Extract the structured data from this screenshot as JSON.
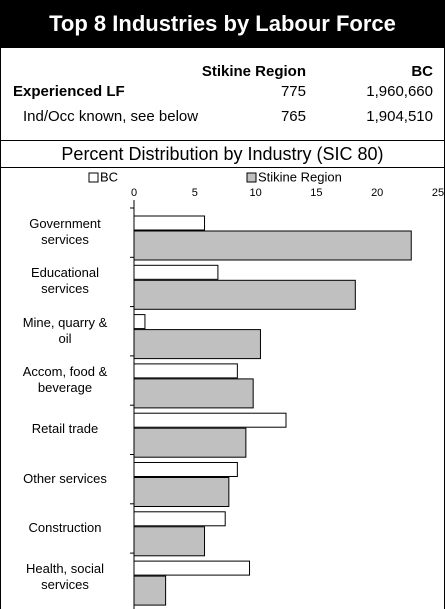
{
  "header": {
    "title": "Top 8 Industries by Labour Force"
  },
  "table": {
    "columns": [
      "Stikine Region",
      "BC"
    ],
    "rows": [
      [
        "Experienced LF",
        "775",
        "1,960,660"
      ],
      [
        "Ind/Occ known, see below",
        "765",
        "1,904,510"
      ]
    ]
  },
  "chart_data": {
    "type": "bar",
    "orientation": "horizontal",
    "title": "Percent Distribution by Industry (SIC 80)",
    "categories": [
      "Government services",
      "Educational services",
      "Mine, quarry & oil",
      "Accom, food & beverage",
      "Retail trade",
      "Other services",
      "Construction",
      "Health, social services"
    ],
    "series": [
      {
        "name": "BC",
        "color": "#ffffff",
        "values": [
          5.8,
          6.9,
          0.9,
          8.5,
          12.5,
          8.5,
          7.5,
          9.5
        ]
      },
      {
        "name": "Stikine Region",
        "color": "#c0c0c0",
        "values": [
          22.8,
          18.2,
          10.4,
          9.8,
          9.2,
          7.8,
          5.8,
          2.6
        ]
      }
    ],
    "xlim": [
      0,
      25
    ],
    "xticks": [
      0,
      5,
      10,
      15,
      20,
      25
    ],
    "grid": false,
    "legend": "top"
  }
}
